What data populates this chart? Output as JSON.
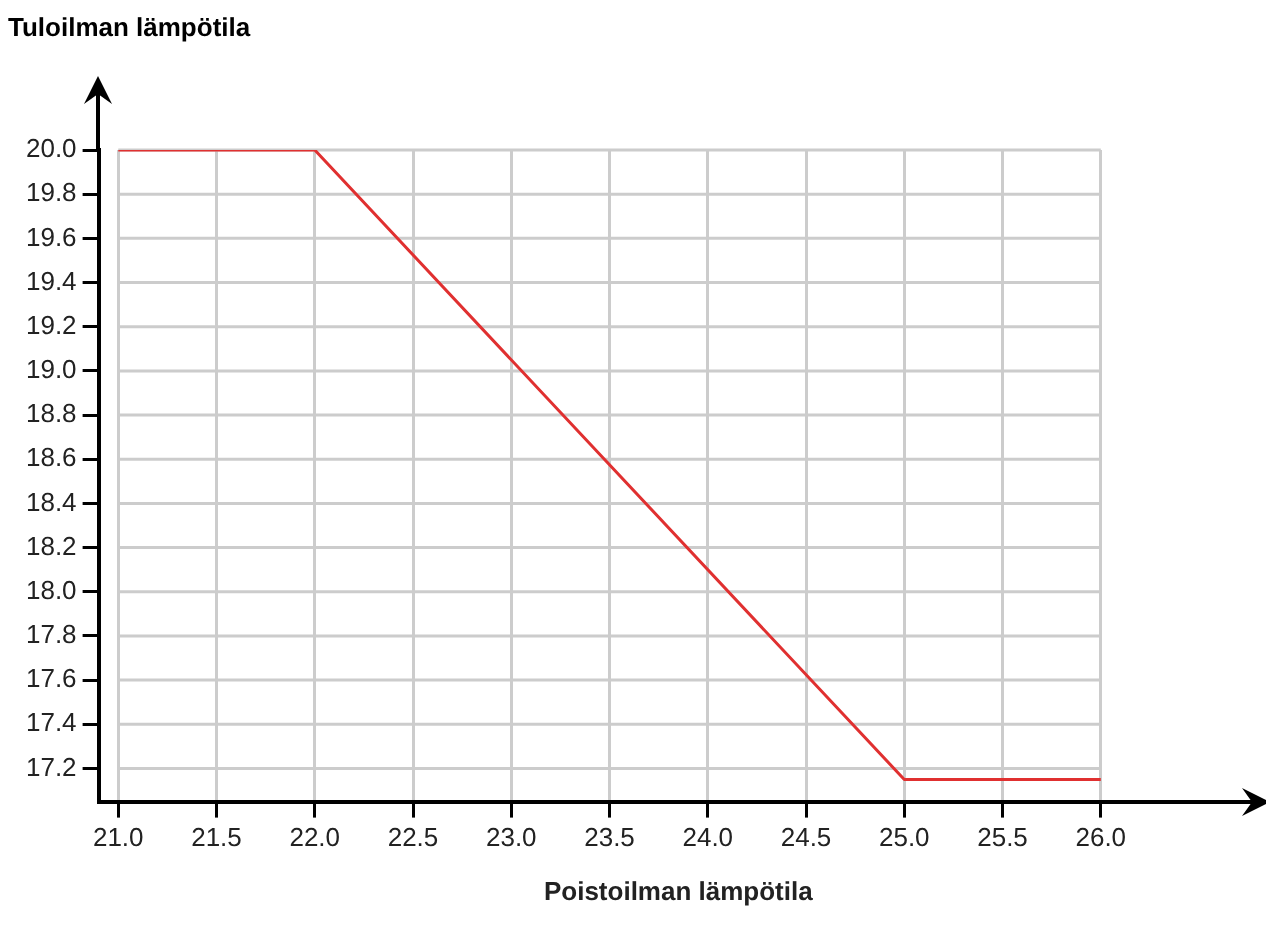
{
  "chart_data": {
    "type": "line",
    "xlabel": "Poistoilman lämpötila",
    "ylabel": "Tuloilman lämpötila",
    "x": [
      21,
      22,
      25,
      26
    ],
    "series": [
      {
        "color": "#e03030",
        "values": [
          20.0,
          20.0,
          17.15,
          17.15
        ]
      }
    ],
    "xlim": [
      20.9,
      26.8
    ],
    "ylim": [
      17.05,
      20.0
    ],
    "xticks": [
      {
        "value": 21,
        "label": "21.0"
      },
      21.5,
      {
        "value": 22,
        "label": "22.0"
      },
      22.5,
      {
        "value": 23,
        "label": "23.0"
      },
      23.5,
      {
        "value": 24,
        "label": "24.0"
      },
      24.5,
      {
        "value": 25,
        "label": "25.0"
      },
      25.5,
      {
        "value": 26,
        "label": "26.0"
      }
    ],
    "yticks": [
      17.2,
      17.4,
      17.6,
      17.8,
      {
        "value": 18,
        "label": "18.0"
      },
      18.2,
      18.4,
      18.6,
      18.8,
      {
        "value": 19,
        "label": "19.0"
      },
      19.2,
      19.4,
      19.6,
      19.8,
      {
        "value": 20,
        "label": "20.0"
      }
    ],
    "grid": true,
    "marker": "none",
    "line_style": "solid"
  }
}
